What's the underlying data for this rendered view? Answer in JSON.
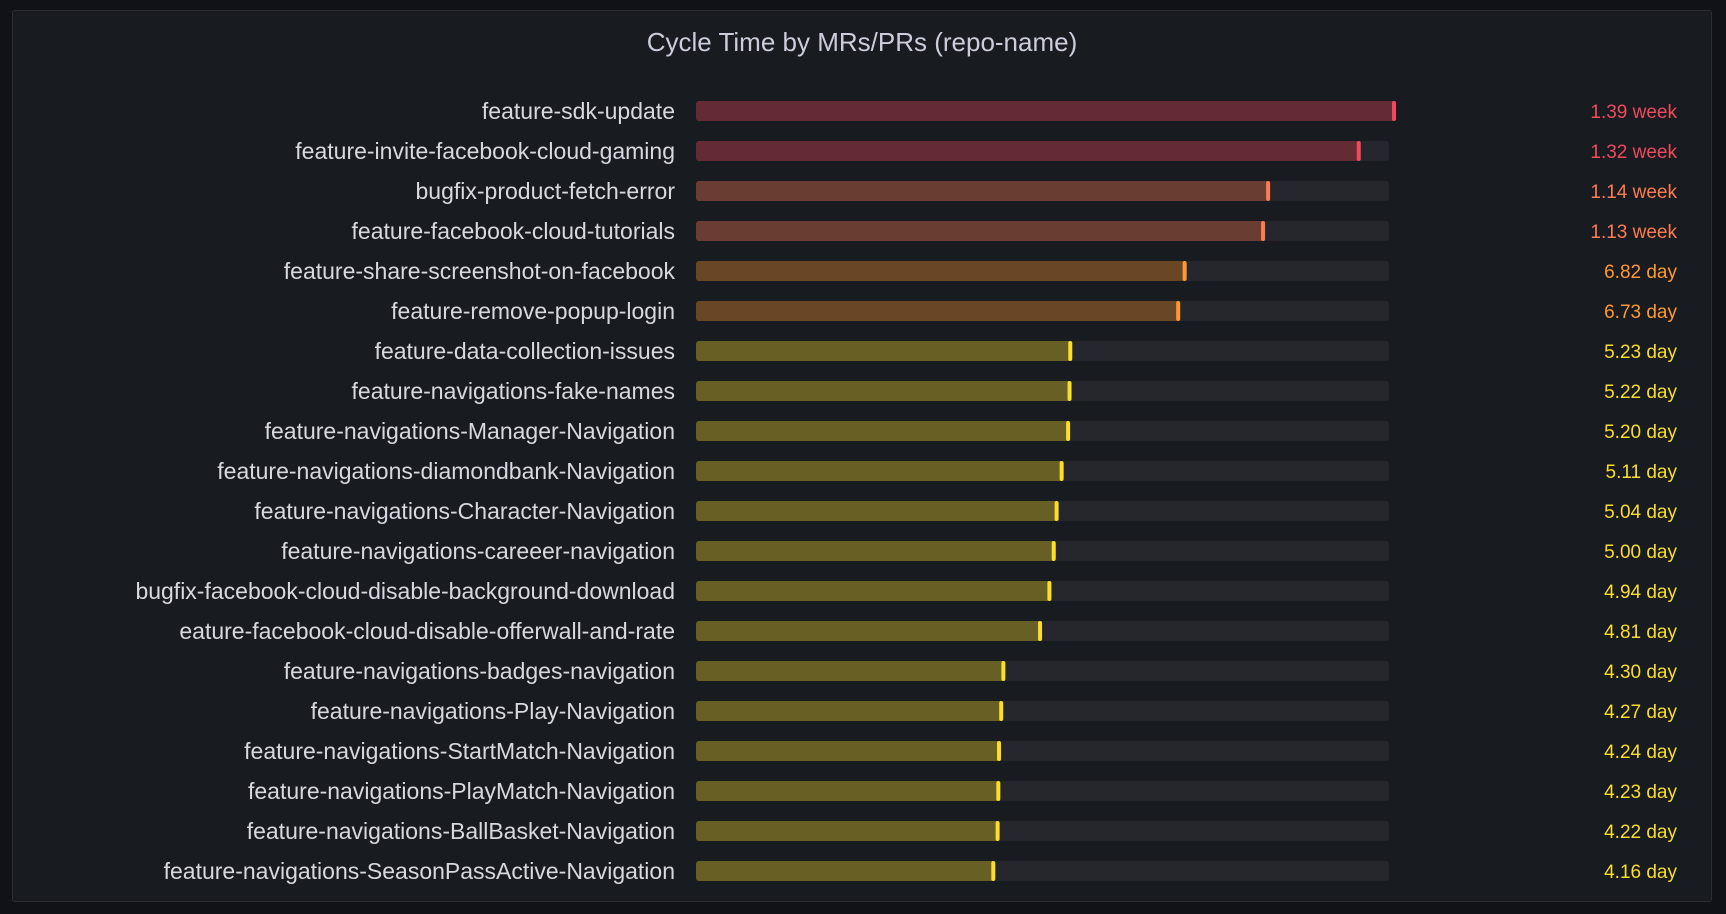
{
  "panel": {
    "title": "Cycle Time by MRs/PRs (repo-name)"
  },
  "colors": {
    "background": "#111217",
    "panel": "#181b1f",
    "track": "#25272d",
    "red": "#f2495c",
    "orange_red": "#ff7b52",
    "orange": "#ff9830",
    "yellow": "#fade2a"
  },
  "chart_data": {
    "type": "bar",
    "orientation": "horizontal",
    "unit_note": "values in days",
    "max_days": 9.73,
    "categories": [
      "feature-sdk-update",
      "feature-invite-facebook-cloud-gaming",
      "bugfix-product-fetch-error",
      "feature-facebook-cloud-tutorials",
      "feature-share-screenshot-on-facebook",
      "feature-remove-popup-login",
      "feature-data-collection-issues",
      "feature-navigations-fake-names",
      "feature-navigations-Manager-Navigation",
      "feature-navigations-diamondbank-Navigation",
      "feature-navigations-Character-Navigation",
      "feature-navigations-careeer-navigation",
      "bugfix-facebook-cloud-disable-background-download",
      "eature-facebook-cloud-disable-offerwall-and-rate",
      "feature-navigations-badges-navigation",
      "feature-navigations-Play-Navigation",
      "feature-navigations-StartMatch-Navigation",
      "feature-navigations-PlayMatch-Navigation",
      "feature-navigations-BallBasket-Navigation",
      "feature-navigations-SeasonPassActive-Navigation"
    ],
    "values_days": [
      9.73,
      9.24,
      7.98,
      7.91,
      6.82,
      6.73,
      5.23,
      5.22,
      5.2,
      5.11,
      5.04,
      5.0,
      4.94,
      4.81,
      4.3,
      4.27,
      4.24,
      4.23,
      4.22,
      4.16
    ],
    "value_labels": [
      "1.39 week",
      "1.32 week",
      "1.14 week",
      "1.13 week",
      "6.82 day",
      "6.73 day",
      "5.23 day",
      "5.22 day",
      "5.20 day",
      "5.11 day",
      "5.04 day",
      "5.00 day",
      "4.94 day",
      "4.81 day",
      "4.30 day",
      "4.27 day",
      "4.24 day",
      "4.23 day",
      "4.22 day",
      "4.16 day"
    ],
    "color_levels": [
      "red",
      "red",
      "orange_red",
      "orange_red",
      "orange",
      "orange",
      "yellow",
      "yellow",
      "yellow",
      "yellow",
      "yellow",
      "yellow",
      "yellow",
      "yellow",
      "yellow",
      "yellow",
      "yellow",
      "yellow",
      "yellow",
      "yellow"
    ],
    "legend": "none",
    "grid": false
  }
}
